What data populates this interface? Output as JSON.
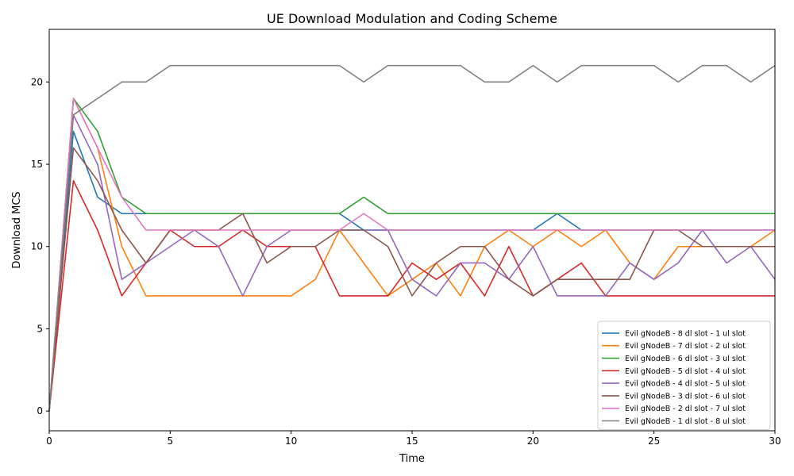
{
  "chart_data": {
    "type": "line",
    "title": "UE Download Modulation and Coding Scheme",
    "xlabel": "Time",
    "ylabel": "Download MCS",
    "xlim": [
      0,
      30
    ],
    "ylim": [
      -1.2,
      23.2
    ],
    "xticks": [
      0,
      5,
      10,
      15,
      20,
      25,
      30
    ],
    "yticks": [
      0,
      5,
      10,
      15,
      20
    ],
    "legend_position": "lower-right",
    "grid": false,
    "x": [
      0,
      1,
      2,
      3,
      4,
      5,
      6,
      7,
      8,
      9,
      10,
      11,
      12,
      13,
      14,
      15,
      16,
      17,
      18,
      19,
      20,
      21,
      22,
      23,
      24,
      25,
      26,
      27,
      28,
      29,
      30
    ],
    "series": [
      {
        "name": "Evil gNodeB - 8 dl slot - 1 ul slot",
        "color": "#1f77b4",
        "values": [
          0,
          17,
          13,
          12,
          12,
          12,
          12,
          12,
          12,
          12,
          12,
          12,
          12,
          11,
          11,
          11,
          11,
          11,
          11,
          11,
          11,
          12,
          11,
          11,
          11,
          11,
          11,
          11,
          11,
          11,
          11
        ]
      },
      {
        "name": "Evil gNodeB - 7 dl slot - 2 ul slot",
        "color": "#ff7f0e",
        "values": [
          0,
          19,
          16,
          10,
          7,
          7,
          7,
          7,
          7,
          7,
          7,
          8,
          11,
          9,
          7,
          8,
          9,
          7,
          10,
          11,
          10,
          11,
          10,
          11,
          9,
          8,
          10,
          10,
          10,
          10,
          11
        ]
      },
      {
        "name": "Evil gNodeB - 6 dl slot - 3 ul slot",
        "color": "#2ca02c",
        "values": [
          0,
          19,
          17,
          13,
          12,
          12,
          12,
          12,
          12,
          12,
          12,
          12,
          12,
          13,
          12,
          12,
          12,
          12,
          12,
          12,
          12,
          12,
          12,
          12,
          12,
          12,
          12,
          12,
          12,
          12,
          12
        ]
      },
      {
        "name": "Evil gNodeB - 5 dl slot - 4 ul slot",
        "color": "#d62728",
        "values": [
          0,
          14,
          11,
          7,
          9,
          11,
          10,
          10,
          11,
          10,
          10,
          10,
          7,
          7,
          7,
          9,
          8,
          9,
          7,
          10,
          7,
          8,
          9,
          7,
          7,
          7,
          7,
          7,
          7,
          7,
          7
        ]
      },
      {
        "name": "Evil gNodeB - 4 dl slot - 5 ul slot",
        "color": "#9467bd",
        "values": [
          0,
          18,
          15,
          8,
          9,
          10,
          11,
          10,
          7,
          10,
          11,
          11,
          11,
          11,
          11,
          8,
          7,
          9,
          9,
          8,
          10,
          7,
          7,
          7,
          9,
          8,
          9,
          11,
          9,
          10,
          8
        ]
      },
      {
        "name": "Evil gNodeB - 3 dl slot - 6 ul slot",
        "color": "#8c564b",
        "values": [
          0,
          16,
          14,
          11,
          9,
          11,
          11,
          11,
          12,
          9,
          10,
          10,
          11,
          11,
          10,
          7,
          9,
          10,
          10,
          8,
          7,
          8,
          8,
          8,
          8,
          11,
          11,
          10,
          10,
          10,
          10
        ]
      },
      {
        "name": "Evil gNodeB - 2 dl slot - 7 ul slot",
        "color": "#e377c2",
        "values": [
          0,
          19,
          16,
          13,
          11,
          11,
          11,
          11,
          11,
          11,
          11,
          11,
          11,
          12,
          11,
          11,
          11,
          11,
          11,
          11,
          11,
          11,
          11,
          11,
          11,
          11,
          11,
          11,
          11,
          11,
          11
        ]
      },
      {
        "name": "Evil gNodeB - 1 dl slot - 8 ul slot",
        "color": "#7f7f7f",
        "values": [
          0,
          18,
          19,
          20,
          20,
          21,
          21,
          21,
          21,
          21,
          21,
          21,
          21,
          20,
          21,
          21,
          21,
          21,
          20,
          20,
          21,
          20,
          21,
          21,
          21,
          21,
          20,
          21,
          21,
          20,
          21
        ]
      }
    ]
  }
}
